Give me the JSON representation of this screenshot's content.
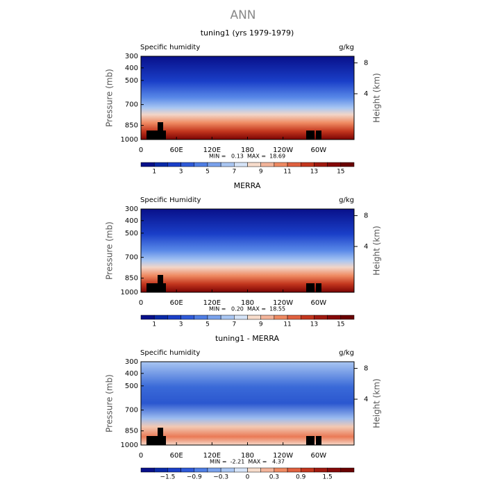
{
  "title": "ANN",
  "panels": [
    {
      "title": "tuning1 (yrs 1979-1979)",
      "left_label": "Specific humidity",
      "units": "g/kg",
      "y_axis_label": "Pressure (mb)",
      "y2_axis_label": "Height (km)",
      "yticks": [
        "300",
        "400",
        "500",
        "700",
        "850",
        "1000"
      ],
      "y2ticks": [
        "8",
        "4"
      ],
      "xticks": [
        "0",
        "60E",
        "120E",
        "180",
        "120W",
        "60W"
      ],
      "stats": "MIN =   0.13  MAX =  18.69",
      "colorbar_labels": [
        "1",
        "3",
        "5",
        "7",
        "9",
        "11",
        "13",
        "15"
      ]
    },
    {
      "title": "MERRA",
      "left_label": "Specific Humidity",
      "units": "g/kg",
      "y_axis_label": "Pressure (mb)",
      "y2_axis_label": "Height (km)",
      "yticks": [
        "300",
        "400",
        "500",
        "700",
        "850",
        "1000"
      ],
      "y2ticks": [
        "8",
        "4"
      ],
      "xticks": [
        "0",
        "60E",
        "120E",
        "180",
        "120W",
        "60W"
      ],
      "stats": "MIN =   0.20  MAX =  18.55",
      "colorbar_labels": [
        "1",
        "3",
        "5",
        "7",
        "9",
        "11",
        "13",
        "15"
      ]
    },
    {
      "title": "tuning1 - MERRA",
      "left_label": "Specific humidity",
      "units": "g/kg",
      "y_axis_label": "Pressure (mb)",
      "y2_axis_label": "Height (km)",
      "yticks": [
        "300",
        "400",
        "500",
        "700",
        "850",
        "1000"
      ],
      "y2ticks": [
        "8",
        "4"
      ],
      "xticks": [
        "0",
        "60E",
        "120E",
        "180",
        "120W",
        "60W"
      ],
      "stats": "MIN =  -2.21  MAX =   4.37",
      "colorbar_labels": [
        "−1.5",
        "−0.9",
        "−0.3",
        "0",
        "0.3",
        "0.9",
        "1.5"
      ]
    }
  ]
}
